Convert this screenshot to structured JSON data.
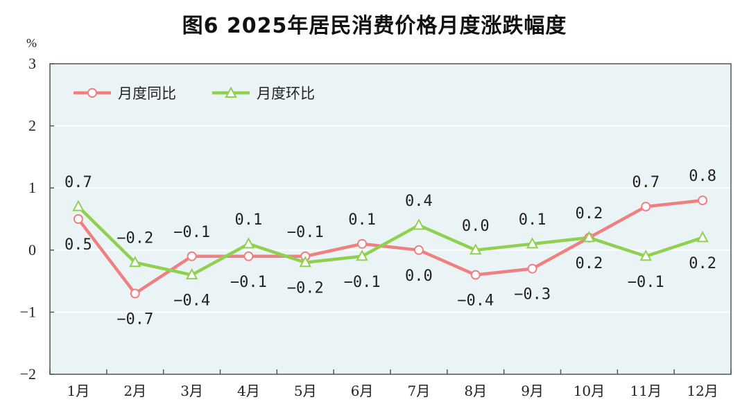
{
  "chart_data": {
    "type": "line",
    "title": "图6   2025年居民消费价格月度涨跌幅度",
    "ylabel": "%",
    "ylim": [
      -2,
      3
    ],
    "yticks": [
      "3",
      "2",
      "1",
      "0",
      "-1",
      "-2"
    ],
    "categories": [
      "1月",
      "2月",
      "3月",
      "4月",
      "5月",
      "6月",
      "7月",
      "8月",
      "9月",
      "10月",
      "11月",
      "12月"
    ],
    "grid": true,
    "legend_position": "top-left",
    "series": [
      {
        "name": "月度同比",
        "color": "#f08080",
        "marker": "circle",
        "values": [
          0.5,
          -0.7,
          -0.1,
          -0.1,
          -0.1,
          0.1,
          0.0,
          -0.4,
          -0.3,
          0.2,
          0.7,
          0.8
        ],
        "labels": [
          "0.5",
          "-0.7",
          "-0.1",
          "-0.1",
          "-0.1",
          "0.1",
          "0.0",
          "-0.4",
          "-0.3",
          "0.2",
          "0.7",
          "0.8"
        ]
      },
      {
        "name": "月度环比",
        "color": "#8fd14f",
        "marker": "triangle",
        "values": [
          0.7,
          -0.2,
          -0.4,
          0.1,
          -0.2,
          -0.1,
          0.4,
          0.0,
          0.1,
          0.2,
          -0.1,
          0.2
        ],
        "labels": [
          "0.7",
          "-0.2",
          "-0.4",
          "0.1",
          "-0.2",
          "-0.1",
          "0.4",
          "0.0",
          "0.1",
          "0.2",
          "-0.1",
          "0.2"
        ]
      }
    ],
    "plot_background": "#eaf3f5"
  }
}
